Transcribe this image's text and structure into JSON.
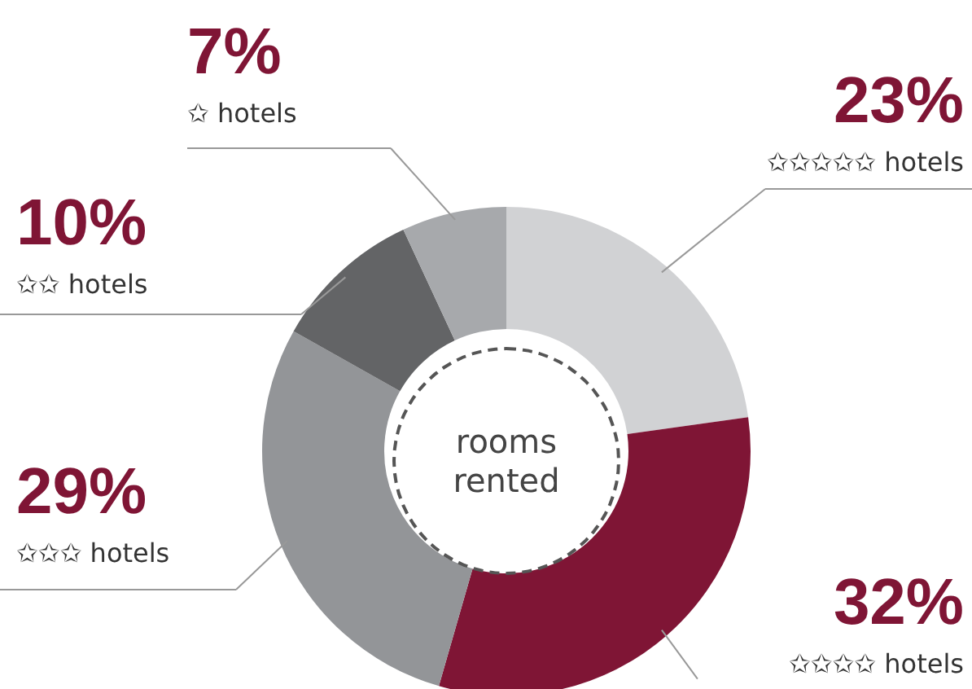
{
  "chart_data": {
    "type": "donut",
    "title": "rooms rented",
    "categories": [
      "✩✩✩✩✩ hotels",
      "✩✩✩✩ hotels",
      "✩✩✩ hotels",
      "✩✩ hotels",
      "✩ hotels"
    ],
    "values": [
      23,
      32,
      29,
      10,
      7
    ],
    "value_labels": [
      "23%",
      "32%",
      "29%",
      "10%",
      "7%"
    ],
    "colors": [
      "#d1d2d4",
      "#7f1535",
      "#939598",
      "#636466",
      "#a7a9ac"
    ]
  }
}
